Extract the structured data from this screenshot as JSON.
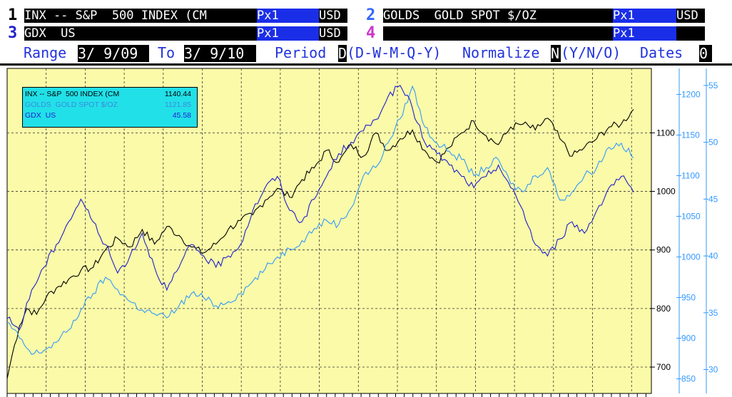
{
  "header": {
    "rows": [
      {
        "num1": "1",
        "sec1": "INX -- S&P  500 INDEX (CM",
        "px1": "Px1",
        "cur1": "USD",
        "num2": "2",
        "sec2": "GOLDS  GOLD SPOT $/OZ",
        "px2": "Px1",
        "cur2": "USD"
      },
      {
        "num1": "3",
        "sec1": "GDX  US",
        "px1": "Px1",
        "cur1": "USD",
        "num2": "4",
        "sec2": "",
        "px2": "Px1",
        "cur2": ""
      }
    ],
    "controls": {
      "range_label": "Range",
      "range_from": "3/ 9/09",
      "to_label": "To",
      "range_to": "3/ 9/10",
      "period_label": "Period",
      "period_value": "D",
      "period_options": "(D-W-M-Q-Y)",
      "normalize_label": "Normalize",
      "normalize_value": "N",
      "normalize_options": "(Y/N/O)",
      "dates_label": "Dates",
      "dates_value": "0"
    }
  },
  "colors": {
    "plot_bg": "#fafaa8",
    "grid": "#333333",
    "spx": "#000000",
    "gold": "#3399ff",
    "gdx": "#1f1fd0",
    "num1": "#000000",
    "num2": "#3366ff",
    "num3": "#2222cc",
    "num4": "#cc33cc"
  },
  "legend": {
    "items": [
      {
        "name": "INX -- S&P  500 INDEX (CM",
        "value": "1140.44",
        "color": "#000000"
      },
      {
        "name": "GOLDS  GOLD SPOT $/OZ",
        "value": "1121.85",
        "color": "#3399ff"
      },
      {
        "name": "GDX  US",
        "value": "45.58",
        "color": "#1f1fd0"
      }
    ]
  },
  "chart_data": {
    "type": "line",
    "x_range": [
      "3/9/09",
      "3/9/10"
    ],
    "period": "daily",
    "grid": true,
    "axes": [
      {
        "side": "right-inner",
        "series": "INX",
        "ticks": [
          700,
          800,
          900,
          1000,
          1100
        ],
        "ylim": [
          655,
          1210
        ],
        "color": "#000000"
      },
      {
        "side": "right-middle",
        "series": "GOLDS",
        "ticks": [
          850,
          900,
          950,
          1000,
          1050,
          1100,
          1150,
          1200
        ],
        "ylim": [
          832,
          1232
        ],
        "color": "#3399ff"
      },
      {
        "side": "right-outer",
        "series": "GDX",
        "ticks": [
          30,
          35,
          40,
          45,
          50,
          55
        ],
        "ylim": [
          27.9,
          56.5
        ],
        "color": "#3399ff"
      }
    ],
    "series": [
      {
        "name": "INX -- S&P  500 INDEX (CM",
        "axis": 0,
        "x": [
          0,
          2,
          5,
          8,
          12,
          16,
          20,
          25,
          30,
          35,
          40,
          45,
          50,
          55,
          60,
          65,
          70,
          75,
          80,
          85,
          90,
          95,
          100,
          105,
          110,
          115,
          120,
          125,
          130,
          135,
          140,
          145,
          150,
          155,
          160,
          165,
          170,
          175,
          180,
          185,
          190,
          195,
          200,
          205,
          210,
          215,
          220,
          225,
          230,
          235,
          240,
          245,
          250,
          255
        ],
        "values": [
          680,
          720,
          770,
          800,
          790,
          820,
          835,
          850,
          865,
          870,
          900,
          920,
          905,
          935,
          910,
          940,
          925,
          905,
          895,
          910,
          935,
          950,
          960,
          985,
          1005,
          990,
          1020,
          1040,
          1070,
          1050,
          1080,
          1060,
          1100,
          1070,
          1090,
          1105,
          1070,
          1050,
          1075,
          1100,
          1120,
          1095,
          1080,
          1110,
          1115,
          1105,
          1125,
          1090,
          1060,
          1075,
          1090,
          1110,
          1115,
          1140
        ]
      },
      {
        "name": "GOLDS  GOLD SPOT $/OZ",
        "axis": 1,
        "x": [
          0,
          5,
          10,
          15,
          20,
          25,
          30,
          35,
          40,
          45,
          50,
          55,
          60,
          65,
          70,
          75,
          80,
          85,
          90,
          95,
          100,
          105,
          110,
          115,
          120,
          125,
          130,
          135,
          140,
          145,
          150,
          155,
          160,
          165,
          170,
          175,
          180,
          185,
          190,
          195,
          200,
          205,
          210,
          215,
          220,
          225,
          230,
          235,
          240,
          245,
          250,
          255
        ],
        "values": [
          920,
          900,
          880,
          885,
          895,
          910,
          935,
          955,
          975,
          960,
          945,
          935,
          930,
          925,
          940,
          955,
          950,
          940,
          945,
          955,
          970,
          985,
          1000,
          1010,
          1020,
          1035,
          1045,
          1040,
          1060,
          1100,
          1110,
          1140,
          1170,
          1210,
          1160,
          1140,
          1130,
          1120,
          1100,
          1110,
          1120,
          1090,
          1080,
          1100,
          1110,
          1070,
          1080,
          1100,
          1110,
          1135,
          1140,
          1122
        ]
      },
      {
        "name": "GDX  US",
        "axis": 2,
        "x": [
          0,
          5,
          10,
          15,
          20,
          25,
          30,
          35,
          40,
          45,
          50,
          55,
          60,
          65,
          70,
          75,
          80,
          85,
          90,
          95,
          100,
          105,
          110,
          115,
          120,
          125,
          130,
          135,
          140,
          145,
          150,
          155,
          160,
          165,
          170,
          175,
          180,
          185,
          190,
          195,
          200,
          205,
          210,
          215,
          220,
          225,
          230,
          235,
          240,
          245,
          250,
          255
        ],
        "values": [
          34.5,
          33.5,
          37,
          39,
          41,
          43,
          45,
          43,
          41,
          38.5,
          40,
          42,
          39,
          37,
          39,
          41,
          40,
          39,
          40,
          41,
          44,
          46,
          47,
          44,
          43,
          45,
          47,
          49,
          50,
          51,
          52,
          54,
          55,
          53,
          50,
          49,
          48,
          47,
          46,
          47,
          48,
          46,
          44,
          41,
          40,
          41.5,
          43,
          42,
          44,
          46,
          47,
          45.6
        ]
      }
    ]
  }
}
